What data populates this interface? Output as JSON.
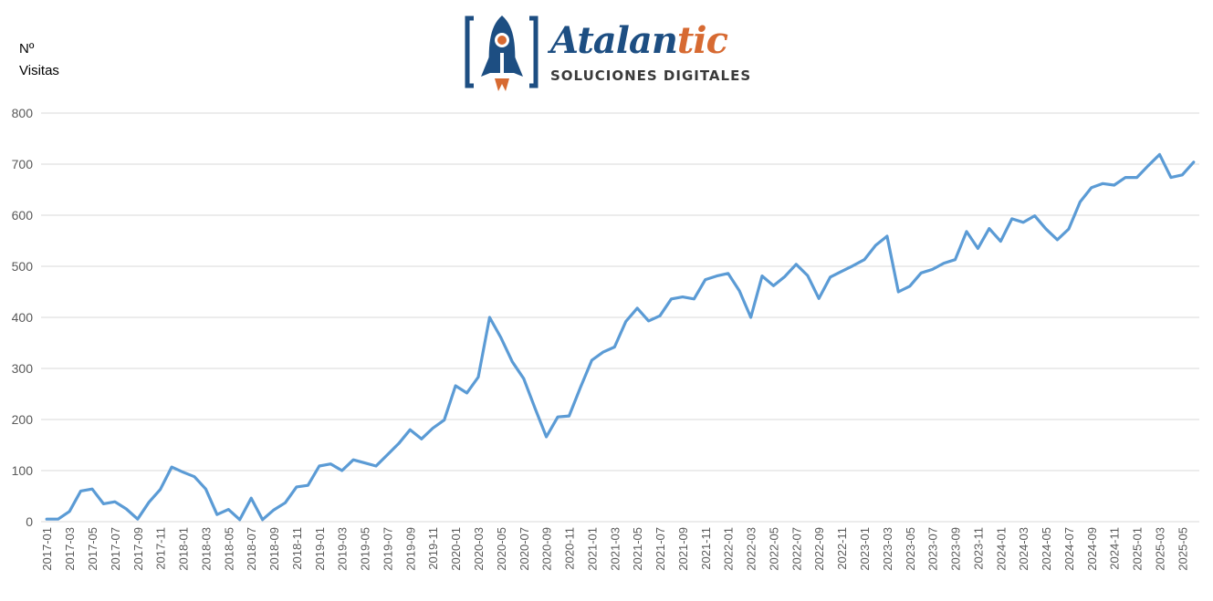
{
  "logo": {
    "brand_main": "Atalan",
    "brand_accent": "tic",
    "tagline": "SOLUCIONES DIGITALES",
    "colors": {
      "primary": "#1d4e82",
      "accent": "#d76a32"
    },
    "icon": "rocket-icon"
  },
  "chart_data": {
    "type": "line",
    "title": "",
    "xlabel": "",
    "ylabel": [
      "Nº",
      "Visitas"
    ],
    "ylim": [
      0,
      800
    ],
    "yticks": [
      0,
      100,
      200,
      300,
      400,
      500,
      600,
      700,
      800
    ],
    "grid": "horizontal",
    "legend": "none",
    "line_color": "#5b9bd5",
    "xtick_labels": [
      "2017-01",
      "2017-03",
      "2017-05",
      "2017-07",
      "2017-09",
      "2017-11",
      "2018-01",
      "2018-03",
      "2018-05",
      "2018-07",
      "2018-09",
      "2018-11",
      "2019-01",
      "2019-03",
      "2019-05",
      "2019-07",
      "2019-09",
      "2019-11",
      "2020-01",
      "2020-03",
      "2020-05",
      "2020-07",
      "2020-09",
      "2020-11",
      "2021-01",
      "2021-03",
      "2021-05",
      "2021-07",
      "2021-09",
      "2021-11",
      "2022-01",
      "2022-03",
      "2022-05",
      "2022-07",
      "2022-09",
      "2022-11",
      "2023-01",
      "2023-03",
      "2023-05",
      "2023-07",
      "2023-09",
      "2023-11",
      "2024-01",
      "2024-03",
      "2024-05",
      "2024-07",
      "2024-09",
      "2024-11",
      "2025-01",
      "2025-03",
      "2025-05"
    ],
    "x": [
      "2017-01",
      "2017-02",
      "2017-03",
      "2017-04",
      "2017-05",
      "2017-06",
      "2017-07",
      "2017-08",
      "2017-09",
      "2017-10",
      "2017-11",
      "2017-12",
      "2018-01",
      "2018-02",
      "2018-03",
      "2018-04",
      "2018-05",
      "2018-06",
      "2018-07",
      "2018-08",
      "2018-09",
      "2018-10",
      "2018-11",
      "2018-12",
      "2019-01",
      "2019-02",
      "2019-03",
      "2019-04",
      "2019-05",
      "2019-06",
      "2019-07",
      "2019-08",
      "2019-09",
      "2019-10",
      "2019-11",
      "2019-12",
      "2020-01",
      "2020-02",
      "2020-03",
      "2020-04",
      "2020-05",
      "2020-06",
      "2020-07",
      "2020-08",
      "2020-09",
      "2020-10",
      "2020-11",
      "2020-12",
      "2021-01",
      "2021-02",
      "2021-03",
      "2021-04",
      "2021-05",
      "2021-06",
      "2021-07",
      "2021-08",
      "2021-09",
      "2021-10",
      "2021-11",
      "2021-12",
      "2022-01",
      "2022-02",
      "2022-03",
      "2022-04",
      "2022-05",
      "2022-06",
      "2022-07",
      "2022-08",
      "2022-09",
      "2022-10",
      "2022-11",
      "2022-12",
      "2023-01",
      "2023-02",
      "2023-03",
      "2023-04",
      "2023-05",
      "2023-06",
      "2023-07",
      "2023-08",
      "2023-09",
      "2023-10",
      "2023-11",
      "2023-12",
      "2024-01",
      "2024-02",
      "2024-03",
      "2024-04",
      "2024-05",
      "2024-06",
      "2024-07",
      "2024-08",
      "2024-09",
      "2024-10",
      "2024-11",
      "2024-12",
      "2025-01",
      "2025-02",
      "2025-03",
      "2025-04",
      "2025-05",
      "2025-06"
    ],
    "series": [
      {
        "values": [
          5,
          5,
          20,
          60,
          64,
          35,
          39,
          25,
          5,
          38,
          63,
          107,
          97,
          88,
          64,
          14,
          24,
          4,
          46,
          4,
          23,
          37,
          68,
          71,
          109,
          113,
          100,
          121,
          115,
          109,
          131,
          153,
          180,
          162,
          183,
          199,
          266,
          252,
          283,
          400,
          360,
          313,
          280,
          222,
          166,
          205,
          207,
          263,
          316,
          332,
          342,
          392,
          418,
          393,
          403,
          436,
          440,
          436,
          474,
          481,
          486,
          452,
          400,
          481,
          462,
          480,
          504,
          482,
          437,
          479,
          490,
          501,
          513,
          541,
          559,
          450,
          461,
          487,
          494,
          506,
          513,
          568,
          535,
          574,
          549,
          593,
          586,
          599,
          573,
          552,
          573,
          626,
          654,
          662,
          659,
          674,
          674,
          697,
          719,
          674,
          679,
          704
        ]
      }
    ]
  }
}
